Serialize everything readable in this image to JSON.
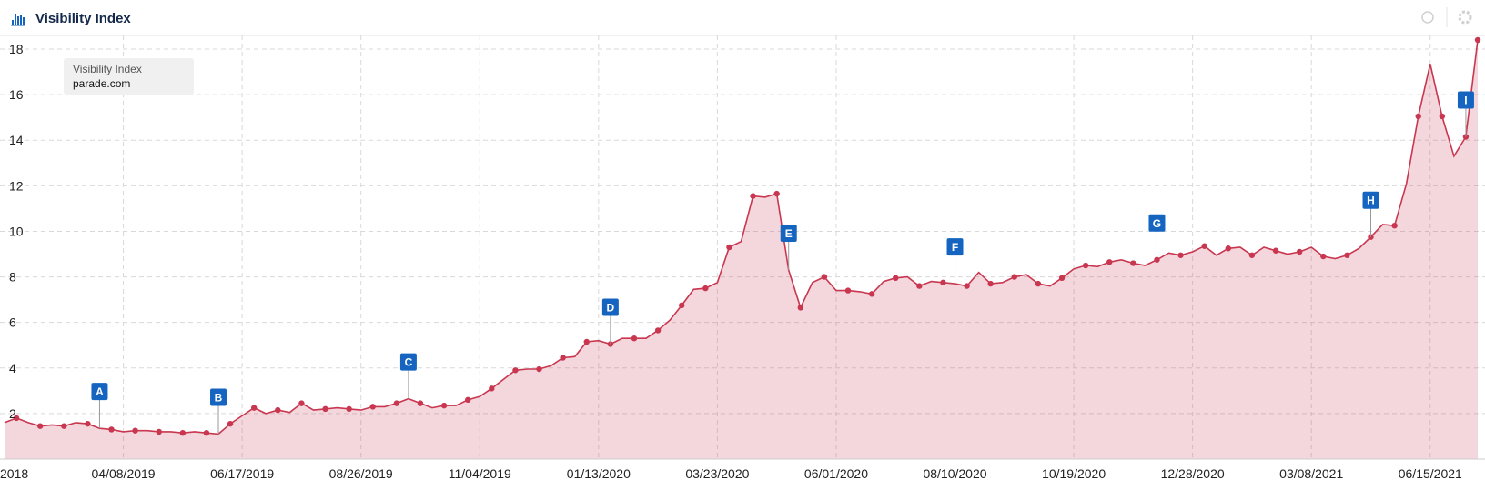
{
  "chart_data": {
    "type": "area",
    "title": "Visibility Index",
    "legend_title": "Visibility Index",
    "categories": [
      "2018",
      null,
      null,
      null,
      null,
      null,
      null,
      null,
      null,
      null,
      "04/08/2019",
      null,
      null,
      null,
      null,
      null,
      null,
      null,
      null,
      null,
      "06/17/2019",
      null,
      null,
      null,
      null,
      null,
      null,
      null,
      null,
      null,
      "08/26/2019",
      null,
      null,
      null,
      null,
      null,
      null,
      null,
      null,
      null,
      "11/04/2019",
      null,
      null,
      null,
      null,
      null,
      null,
      null,
      null,
      null,
      "01/13/2020",
      null,
      null,
      null,
      null,
      null,
      null,
      null,
      null,
      null,
      "03/23/2020",
      null,
      null,
      null,
      null,
      null,
      null,
      null,
      null,
      null,
      "06/01/2020",
      null,
      null,
      null,
      null,
      null,
      null,
      null,
      null,
      null,
      "08/10/2020",
      null,
      null,
      null,
      null,
      null,
      null,
      null,
      null,
      null,
      "10/19/2020",
      null,
      null,
      null,
      null,
      null,
      null,
      null,
      null,
      null,
      "12/28/2020",
      null,
      null,
      null,
      null,
      null,
      null,
      null,
      null,
      null,
      "03/08/2021",
      null,
      null,
      null,
      null,
      null,
      null,
      null,
      null,
      null,
      "06/15/2021",
      null,
      null,
      null,
      null
    ],
    "series": [
      {
        "name": "parade.com",
        "color": "#c9364f",
        "values": [
          1.6,
          1.8,
          1.6,
          1.45,
          1.5,
          1.45,
          1.6,
          1.55,
          1.35,
          1.3,
          1.2,
          1.25,
          1.25,
          1.2,
          1.2,
          1.15,
          1.2,
          1.15,
          1.1,
          1.55,
          1.9,
          2.25,
          2.0,
          2.15,
          2.05,
          2.45,
          2.15,
          2.2,
          2.25,
          2.2,
          2.15,
          2.3,
          2.3,
          2.45,
          2.65,
          2.45,
          2.25,
          2.35,
          2.35,
          2.6,
          2.75,
          3.1,
          3.5,
          3.9,
          3.95,
          3.95,
          4.1,
          4.45,
          4.5,
          5.15,
          5.2,
          5.05,
          5.3,
          5.3,
          5.3,
          5.65,
          6.1,
          6.75,
          7.45,
          7.5,
          7.75,
          9.3,
          9.55,
          11.55,
          11.5,
          11.65,
          8.3,
          6.65,
          7.75,
          8.0,
          7.4,
          7.4,
          7.35,
          7.25,
          7.8,
          7.95,
          8.0,
          7.6,
          7.8,
          7.75,
          7.7,
          7.6,
          8.2,
          7.7,
          7.75,
          8.0,
          8.1,
          7.7,
          7.6,
          7.95,
          8.35,
          8.5,
          8.45,
          8.65,
          8.75,
          8.6,
          8.5,
          8.75,
          9.05,
          8.95,
          9.1,
          9.35,
          8.95,
          9.25,
          9.3,
          8.95,
          9.3,
          9.15,
          9.0,
          9.1,
          9.3,
          8.9,
          8.8,
          8.95,
          9.25,
          9.75,
          10.3,
          10.25,
          12.1,
          15.05,
          17.35,
          15.05,
          13.3,
          14.15,
          18.4
        ]
      }
    ],
    "annotations": [
      {
        "label": "A",
        "at": 8
      },
      {
        "label": "B",
        "at": 18
      },
      {
        "label": "C",
        "at": 34
      },
      {
        "label": "D",
        "at": 51
      },
      {
        "label": "E",
        "at": 66
      },
      {
        "label": "F",
        "at": 80
      },
      {
        "label": "G",
        "at": 97
      },
      {
        "label": "H",
        "at": 115
      },
      {
        "label": "I",
        "at": 123
      }
    ],
    "ylim": [
      0,
      18.6
    ],
    "yticks": [
      2,
      4,
      6,
      8,
      10,
      12,
      14,
      16,
      18
    ],
    "grid": true
  }
}
